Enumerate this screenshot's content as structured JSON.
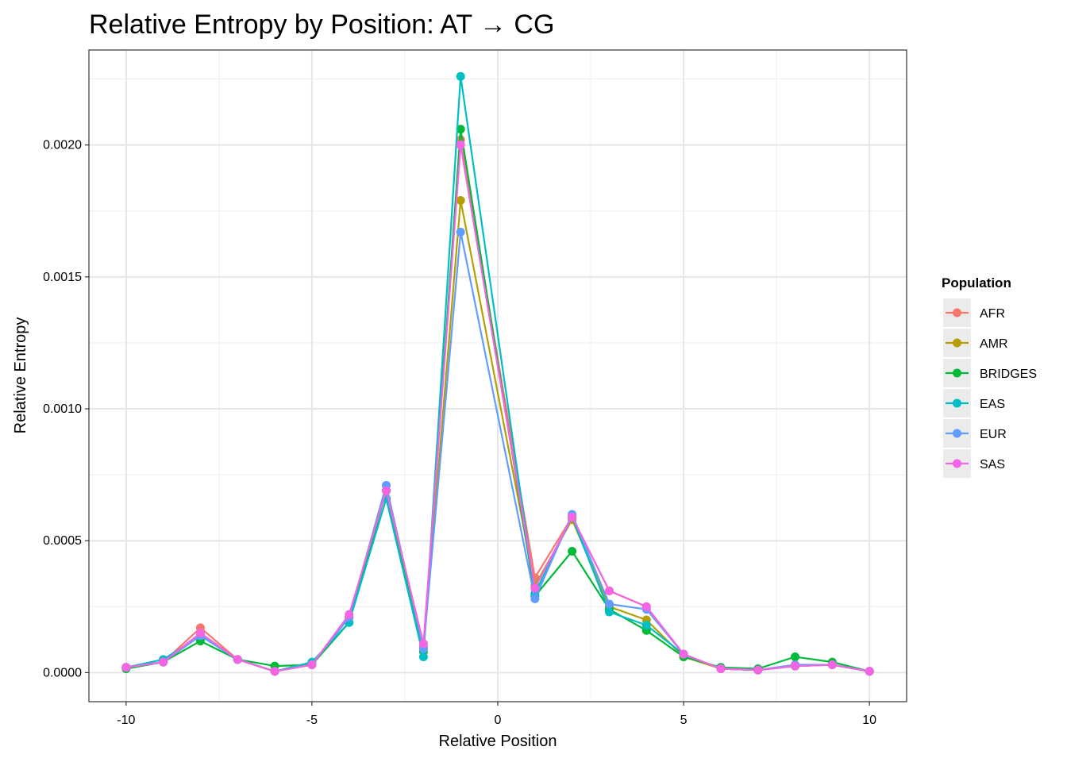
{
  "chart_data": {
    "type": "line",
    "title": "Relative Entropy by Position: AT → CG",
    "xlabel": "Relative Position",
    "ylabel": "Relative Entropy",
    "xlim": [
      -11,
      11
    ],
    "ylim": [
      -0.00011,
      0.00236
    ],
    "x_ticks": [
      -10,
      -5,
      0,
      5,
      10
    ],
    "x_tick_labels": [
      "-10",
      "-5",
      "0",
      "5",
      "10"
    ],
    "y_ticks": [
      0,
      0.0005,
      0.001,
      0.0015,
      0.002
    ],
    "y_tick_labels": [
      "0.0000",
      "0.0005",
      "0.0010",
      "0.0015",
      "0.0020"
    ],
    "grid": true,
    "legend": {
      "title": "Population",
      "position": "right"
    },
    "x": [
      -10,
      -9,
      -8,
      -7,
      -6,
      -5,
      -4,
      -3,
      -2,
      -1,
      1,
      2,
      3,
      4,
      5,
      6,
      7,
      8,
      9,
      10
    ],
    "series": [
      {
        "name": "AFR",
        "color": "#F8766D",
        "values": [
          2e-05,
          4e-05,
          0.00017,
          5e-05,
          5e-06,
          3e-05,
          0.00021,
          0.00069,
          0.0001,
          0.00202,
          0.00036,
          0.00059,
          0.00031,
          0.00025,
          7e-05,
          1.5e-05,
          1e-05,
          2.5e-05,
          3e-05,
          5e-06
        ]
      },
      {
        "name": "AMR",
        "color": "#B79F00",
        "values": [
          2e-05,
          4e-05,
          0.00015,
          5e-05,
          5e-06,
          3e-05,
          0.00021,
          0.00069,
          9e-05,
          0.00179,
          0.00033,
          0.00058,
          0.00025,
          0.0002,
          6e-05,
          1.5e-05,
          1e-05,
          2.5e-05,
          3e-05,
          5e-06
        ]
      },
      {
        "name": "BRIDGES",
        "color": "#00BA38",
        "values": [
          1.5e-05,
          4e-05,
          0.00012,
          5e-05,
          2.5e-05,
          3e-05,
          0.00019,
          0.00069,
          8e-05,
          0.00206,
          0.00029,
          0.00046,
          0.00024,
          0.00016,
          6e-05,
          2e-05,
          1.5e-05,
          6e-05,
          4e-05,
          5e-06
        ]
      },
      {
        "name": "EAS",
        "color": "#00BFC4",
        "values": [
          2e-05,
          5e-05,
          0.00014,
          5e-05,
          5e-06,
          4e-05,
          0.00019,
          0.00066,
          6e-05,
          0.00226,
          0.0003,
          0.00059,
          0.00023,
          0.00018,
          7e-05,
          1.5e-05,
          1e-05,
          2.5e-05,
          3e-05,
          5e-06
        ]
      },
      {
        "name": "EUR",
        "color": "#619CFF",
        "values": [
          2e-05,
          4e-05,
          0.00014,
          5e-05,
          5e-06,
          3e-05,
          0.00021,
          0.00071,
          9e-05,
          0.00167,
          0.00028,
          0.0006,
          0.00026,
          0.00024,
          7e-05,
          1.5e-05,
          1e-05,
          3e-05,
          3e-05,
          5e-06
        ]
      },
      {
        "name": "SAS",
        "color": "#F564E3",
        "values": [
          2e-05,
          4e-05,
          0.00015,
          5e-05,
          5e-06,
          3e-05,
          0.00022,
          0.00069,
          0.00011,
          0.002,
          0.00032,
          0.00059,
          0.00031,
          0.00025,
          7e-05,
          1.5e-05,
          1e-05,
          2.5e-05,
          3e-05,
          5e-06
        ]
      }
    ]
  }
}
